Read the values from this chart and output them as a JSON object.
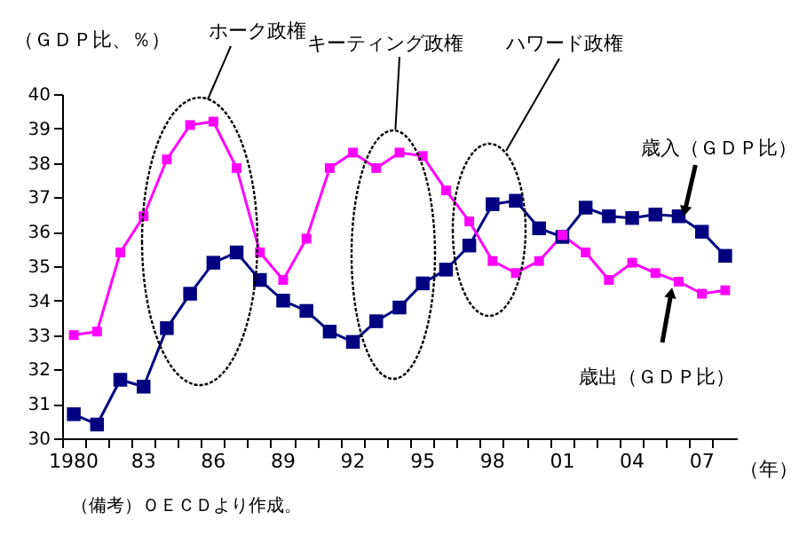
{
  "chart_data": {
    "type": "line",
    "ylabel": "（ＧＤＰ比、％）",
    "xlabel": "（年）",
    "categories": [
      "1980",
      null,
      null,
      "83",
      null,
      null,
      "86",
      null,
      null,
      "89",
      null,
      null,
      "92",
      null,
      null,
      "95",
      null,
      null,
      "98",
      null,
      null,
      "01",
      null,
      null,
      "04",
      null,
      null,
      "07",
      null
    ],
    "series": [
      {
        "name": "歳入（ＧＤＰ比）",
        "color": "#000080",
        "values": [
          30.7,
          30.4,
          31.7,
          31.5,
          33.2,
          34.2,
          35.1,
          35.4,
          34.6,
          34.0,
          33.7,
          33.1,
          32.8,
          33.4,
          33.8,
          34.5,
          34.9,
          35.6,
          36.8,
          36.9,
          36.1,
          35.85,
          36.7,
          36.45,
          36.4,
          36.5,
          36.45,
          36.0,
          35.3
        ]
      },
      {
        "name": "歳出（ＧＤＰ比）",
        "color": "#ff00ff",
        "values": [
          33.0,
          33.1,
          35.4,
          36.45,
          38.1,
          39.1,
          39.2,
          37.85,
          35.4,
          34.6,
          35.8,
          37.85,
          38.3,
          37.85,
          38.3,
          38.2,
          37.2,
          36.3,
          35.15,
          34.8,
          35.15,
          35.9,
          35.4,
          34.6,
          35.1,
          34.8,
          34.55,
          34.2,
          34.3
        ]
      }
    ],
    "ylim": [
      30,
      40
    ],
    "yticks": [
      30,
      31,
      32,
      33,
      34,
      35,
      36,
      37,
      38,
      39,
      40
    ],
    "grid": false,
    "legend": false,
    "marker": "square",
    "line_style": "solid",
    "annotations": [
      "ホーク政権",
      "キーティング政権",
      "ハワード政権",
      "（備考）ＯＥＣＤより作成。"
    ]
  }
}
